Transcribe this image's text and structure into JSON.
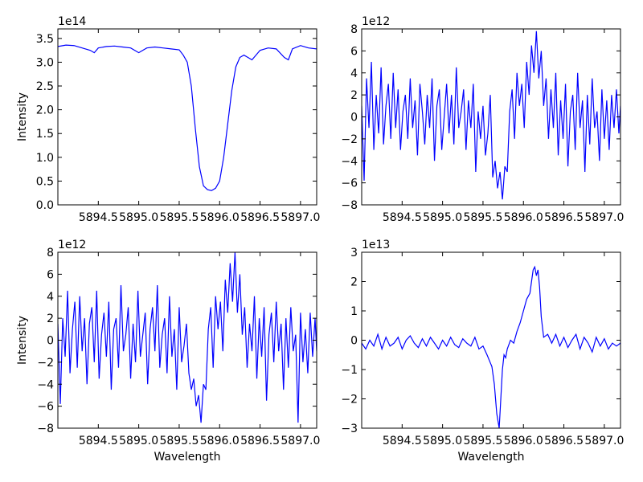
{
  "figure": {
    "line_color": "#0000ff",
    "background": "#ffffff"
  },
  "chart_data": [
    {
      "type": "line",
      "panel": "top-left",
      "title": "",
      "xlabel": "",
      "ylabel": "Intensity",
      "offset_label": "1e14",
      "xlim": [
        5894.0,
        5897.2
      ],
      "ylim": [
        0,
        3.7
      ],
      "xticks": [
        5894.5,
        5895.0,
        5895.5,
        5896.0,
        5896.5,
        5897.0
      ],
      "xtick_labels": [
        "5894.5",
        "5895.0",
        "5895.5",
        "5896.0",
        "5896.5",
        "5897.0"
      ],
      "yticks": [
        0,
        0.5,
        1.0,
        1.5,
        2.0,
        2.5,
        3.0,
        3.5
      ],
      "ytick_labels": [
        "0.0",
        "0.5",
        "1.0",
        "1.5",
        "2.0",
        "2.5",
        "3.0",
        "3.5"
      ],
      "grid": false,
      "series": [
        {
          "x": [
            5894.0,
            5894.1,
            5894.2,
            5894.3,
            5894.4,
            5894.45,
            5894.5,
            5894.6,
            5894.7,
            5894.8,
            5894.9,
            5895.0,
            5895.05,
            5895.1,
            5895.2,
            5895.3,
            5895.4,
            5895.5,
            5895.55,
            5895.6,
            5895.65,
            5895.7,
            5895.75,
            5895.8,
            5895.85,
            5895.9,
            5895.95,
            5896.0,
            5896.05,
            5896.1,
            5896.15,
            5896.2,
            5896.25,
            5896.3,
            5896.35,
            5896.4,
            5896.5,
            5896.6,
            5896.7,
            5896.8,
            5896.85,
            5896.9,
            5897.0,
            5897.1,
            5897.2
          ],
          "y": [
            3.33,
            3.36,
            3.35,
            3.3,
            3.25,
            3.2,
            3.3,
            3.33,
            3.34,
            3.32,
            3.3,
            3.2,
            3.25,
            3.3,
            3.32,
            3.3,
            3.28,
            3.26,
            3.15,
            3.0,
            2.5,
            1.6,
            0.8,
            0.4,
            0.32,
            0.3,
            0.35,
            0.5,
            1.0,
            1.7,
            2.4,
            2.9,
            3.1,
            3.15,
            3.1,
            3.05,
            3.25,
            3.3,
            3.28,
            3.1,
            3.05,
            3.28,
            3.35,
            3.3,
            3.28
          ]
        }
      ]
    },
    {
      "type": "line",
      "panel": "top-right",
      "title": "",
      "xlabel": "",
      "ylabel": "",
      "offset_label": "1e12",
      "xlim": [
        5894.0,
        5897.2
      ],
      "ylim": [
        -8,
        8
      ],
      "xticks": [
        5894.5,
        5895.0,
        5895.5,
        5896.0,
        5896.5,
        5897.0
      ],
      "xtick_labels": [
        "5894.5",
        "5895.0",
        "5895.5",
        "5896.0",
        "5896.5",
        "5897.0"
      ],
      "yticks": [
        -8,
        -6,
        -4,
        -2,
        0,
        2,
        4,
        6,
        8
      ],
      "ytick_labels": [
        "−8",
        "−6",
        "−4",
        "−2",
        "0",
        "2",
        "4",
        "6",
        "8"
      ],
      "grid": false,
      "series": [
        {
          "x": [
            5894.0,
            5894.03,
            5894.06,
            5894.09,
            5894.12,
            5894.15,
            5894.18,
            5894.21,
            5894.24,
            5894.27,
            5894.3,
            5894.33,
            5894.36,
            5894.39,
            5894.42,
            5894.45,
            5894.48,
            5894.51,
            5894.54,
            5894.57,
            5894.6,
            5894.63,
            5894.66,
            5894.69,
            5894.72,
            5894.75,
            5894.78,
            5894.81,
            5894.84,
            5894.87,
            5894.9,
            5894.93,
            5894.96,
            5894.99,
            5895.02,
            5895.05,
            5895.08,
            5895.11,
            5895.14,
            5895.17,
            5895.2,
            5895.23,
            5895.26,
            5895.29,
            5895.32,
            5895.35,
            5895.38,
            5895.41,
            5895.44,
            5895.47,
            5895.5,
            5895.53,
            5895.56,
            5895.59,
            5895.62,
            5895.65,
            5895.68,
            5895.71,
            5895.74,
            5895.77,
            5895.8,
            5895.83,
            5895.86,
            5895.89,
            5895.92,
            5895.95,
            5895.98,
            5896.01,
            5896.04,
            5896.07,
            5896.1,
            5896.13,
            5896.16,
            5896.19,
            5896.22,
            5896.25,
            5896.28,
            5896.31,
            5896.34,
            5896.37,
            5896.4,
            5896.43,
            5896.46,
            5896.49,
            5896.52,
            5896.55,
            5896.58,
            5896.61,
            5896.64,
            5896.67,
            5896.7,
            5896.73,
            5896.76,
            5896.79,
            5896.82,
            5896.85,
            5896.88,
            5896.91,
            5896.94,
            5896.97,
            5897.0,
            5897.03,
            5897.06,
            5897.09,
            5897.12,
            5897.15,
            5897.18,
            5897.2
          ],
          "y": [
            1.0,
            -5.8,
            3.5,
            -1.0,
            5.0,
            -3.0,
            2.0,
            -1.5,
            4.5,
            -2.5,
            1.0,
            3.0,
            -2.0,
            4.0,
            -1.0,
            2.5,
            -3.0,
            0.5,
            2.0,
            -2.0,
            3.5,
            -1.0,
            1.5,
            -3.5,
            3.0,
            0.5,
            -2.5,
            2.0,
            -1.0,
            3.5,
            -4.0,
            1.0,
            2.5,
            -3.0,
            0.0,
            3.0,
            -1.5,
            2.0,
            -2.5,
            4.5,
            -1.0,
            0.5,
            2.5,
            -3.0,
            1.5,
            -1.0,
            3.0,
            -5.0,
            0.5,
            -2.0,
            1.0,
            -3.5,
            -1.5,
            2.0,
            -5.5,
            -4.0,
            -6.5,
            -5.0,
            -7.5,
            -4.5,
            -5.0,
            0.5,
            2.5,
            -2.0,
            4.0,
            1.0,
            3.0,
            -1.0,
            5.0,
            2.0,
            6.5,
            4.0,
            7.8,
            3.5,
            6.0,
            1.0,
            3.5,
            -2.0,
            2.5,
            -1.0,
            4.0,
            -3.5,
            1.5,
            -2.0,
            3.0,
            -4.5,
            0.5,
            2.0,
            -3.0,
            4.0,
            -1.0,
            1.5,
            -5.0,
            2.0,
            -2.5,
            3.5,
            -1.0,
            0.5,
            -4.0,
            2.5,
            -2.0,
            1.5,
            -3.0,
            2.0,
            -1.0,
            2.5,
            -1.5,
            1.0
          ]
        }
      ]
    },
    {
      "type": "line",
      "panel": "bottom-left",
      "title": "",
      "xlabel": "Wavelength",
      "ylabel": "Intensity",
      "offset_label": "1e12",
      "xlim": [
        5894.0,
        5897.2
      ],
      "ylim": [
        -8,
        8
      ],
      "xticks": [
        5894.5,
        5895.0,
        5895.5,
        5896.0,
        5896.5,
        5897.0
      ],
      "xtick_labels": [
        "5894.5",
        "5895.0",
        "5895.5",
        "5896.0",
        "5896.5",
        "5897.0"
      ],
      "yticks": [
        -8,
        -6,
        -4,
        -2,
        0,
        2,
        4,
        6,
        8
      ],
      "ytick_labels": [
        "−8",
        "−6",
        "−4",
        "−2",
        "0",
        "2",
        "4",
        "6",
        "8"
      ],
      "grid": false,
      "series": [
        {
          "x": [
            5894.0,
            5894.03,
            5894.06,
            5894.09,
            5894.12,
            5894.15,
            5894.18,
            5894.21,
            5894.24,
            5894.27,
            5894.3,
            5894.33,
            5894.36,
            5894.39,
            5894.42,
            5894.45,
            5894.48,
            5894.51,
            5894.54,
            5894.57,
            5894.6,
            5894.63,
            5894.66,
            5894.69,
            5894.72,
            5894.75,
            5894.78,
            5894.81,
            5894.84,
            5894.87,
            5894.9,
            5894.93,
            5894.96,
            5894.99,
            5895.02,
            5895.05,
            5895.08,
            5895.11,
            5895.14,
            5895.17,
            5895.2,
            5895.23,
            5895.26,
            5895.29,
            5895.32,
            5895.35,
            5895.38,
            5895.41,
            5895.44,
            5895.47,
            5895.5,
            5895.53,
            5895.56,
            5895.59,
            5895.62,
            5895.65,
            5895.68,
            5895.71,
            5895.74,
            5895.77,
            5895.8,
            5895.83,
            5895.86,
            5895.89,
            5895.92,
            5895.95,
            5895.98,
            5896.01,
            5896.04,
            5896.07,
            5896.1,
            5896.13,
            5896.16,
            5896.19,
            5896.22,
            5896.25,
            5896.28,
            5896.31,
            5896.34,
            5896.37,
            5896.4,
            5896.43,
            5896.46,
            5896.49,
            5896.52,
            5896.55,
            5896.58,
            5896.61,
            5896.64,
            5896.67,
            5896.7,
            5896.73,
            5896.76,
            5896.79,
            5896.82,
            5896.85,
            5896.88,
            5896.91,
            5896.94,
            5896.97,
            5897.0,
            5897.03,
            5897.06,
            5897.09,
            5897.12,
            5897.15,
            5897.18,
            5897.2
          ],
          "y": [
            1.5,
            -5.8,
            2.0,
            -1.5,
            4.5,
            -3.0,
            1.0,
            3.5,
            -2.5,
            4.0,
            -1.0,
            2.0,
            -4.0,
            1.5,
            3.0,
            -2.0,
            4.5,
            -3.5,
            0.5,
            2.5,
            -1.5,
            3.5,
            -4.5,
            1.0,
            2.0,
            -2.5,
            5.0,
            -1.0,
            0.5,
            3.0,
            -3.5,
            1.5,
            -2.0,
            4.5,
            -1.5,
            0.5,
            2.5,
            -4.0,
            1.0,
            3.0,
            -1.0,
            5.0,
            -2.5,
            0.5,
            2.0,
            -3.0,
            4.0,
            -1.5,
            1.0,
            -4.5,
            3.0,
            -2.0,
            -0.5,
            1.5,
            -3.0,
            -4.5,
            -3.5,
            -6.0,
            -5.0,
            -7.5,
            -4.0,
            -4.5,
            1.0,
            3.0,
            -2.5,
            4.0,
            1.0,
            3.5,
            -1.0,
            5.5,
            2.5,
            7.0,
            3.5,
            8.0,
            2.5,
            6.0,
            0.5,
            3.0,
            -2.5,
            1.5,
            -1.0,
            4.0,
            -3.5,
            2.0,
            -1.5,
            3.0,
            -5.5,
            0.5,
            2.5,
            -2.0,
            3.5,
            -1.0,
            1.5,
            -4.5,
            2.0,
            -2.5,
            3.0,
            -1.0,
            0.5,
            -7.5,
            2.5,
            -2.0,
            1.0,
            -3.0,
            2.5,
            -1.5,
            2.0,
            -1.0
          ]
        }
      ]
    },
    {
      "type": "line",
      "panel": "bottom-right",
      "title": "",
      "xlabel": "Wavelength",
      "ylabel": "",
      "offset_label": "1e13",
      "xlim": [
        5894.0,
        5897.2
      ],
      "ylim": [
        -3,
        3
      ],
      "xticks": [
        5894.5,
        5895.0,
        5895.5,
        5896.0,
        5896.5,
        5897.0
      ],
      "xtick_labels": [
        "5894.5",
        "5895.0",
        "5895.5",
        "5896.0",
        "5896.5",
        "5897.0"
      ],
      "yticks": [
        -3,
        -2,
        -1,
        0,
        1,
        2,
        3
      ],
      "ytick_labels": [
        "−3",
        "−2",
        "−1",
        "0",
        "1",
        "2",
        "3"
      ],
      "grid": false,
      "series": [
        {
          "x": [
            5894.0,
            5894.05,
            5894.1,
            5894.15,
            5894.2,
            5894.25,
            5894.3,
            5894.35,
            5894.4,
            5894.45,
            5894.5,
            5894.55,
            5894.6,
            5894.65,
            5894.7,
            5894.75,
            5894.8,
            5894.85,
            5894.9,
            5894.95,
            5895.0,
            5895.05,
            5895.1,
            5895.15,
            5895.2,
            5895.25,
            5895.3,
            5895.35,
            5895.4,
            5895.45,
            5895.5,
            5895.55,
            5895.58,
            5895.61,
            5895.64,
            5895.67,
            5895.7,
            5895.72,
            5895.74,
            5895.76,
            5895.78,
            5895.8,
            5895.84,
            5895.88,
            5895.92,
            5895.96,
            5896.0,
            5896.04,
            5896.08,
            5896.1,
            5896.12,
            5896.14,
            5896.16,
            5896.18,
            5896.2,
            5896.22,
            5896.25,
            5896.3,
            5896.35,
            5896.4,
            5896.45,
            5896.5,
            5896.55,
            5896.6,
            5896.65,
            5896.7,
            5896.75,
            5896.8,
            5896.85,
            5896.9,
            5896.95,
            5897.0,
            5897.05,
            5897.1,
            5897.15,
            5897.2
          ],
          "y": [
            -0.1,
            -0.3,
            0.0,
            -0.2,
            0.2,
            -0.3,
            0.1,
            -0.2,
            -0.1,
            0.1,
            -0.3,
            0.0,
            0.15,
            -0.1,
            -0.25,
            0.05,
            -0.2,
            0.1,
            -0.1,
            -0.3,
            0.0,
            -0.2,
            0.1,
            -0.15,
            -0.25,
            0.05,
            -0.1,
            -0.2,
            0.1,
            -0.3,
            -0.2,
            -0.5,
            -0.7,
            -0.9,
            -1.5,
            -2.5,
            -3.0,
            -2.0,
            -1.0,
            -0.5,
            -0.6,
            -0.3,
            0.0,
            -0.1,
            0.3,
            0.6,
            1.0,
            1.4,
            1.6,
            2.0,
            2.4,
            2.5,
            2.2,
            2.4,
            1.8,
            0.8,
            0.1,
            0.2,
            -0.1,
            0.2,
            -0.2,
            0.1,
            -0.25,
            0.0,
            0.2,
            -0.3,
            0.1,
            -0.1,
            -0.4,
            0.1,
            -0.2,
            0.05,
            -0.3,
            -0.1,
            -0.2,
            -0.1
          ]
        }
      ]
    }
  ]
}
